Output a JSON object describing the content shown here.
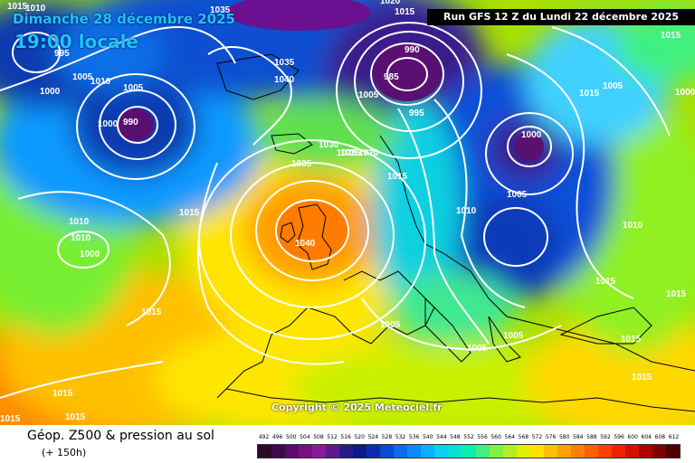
{
  "header": {
    "date_text": "Dimanche 28 décembre 2025",
    "time_text": "19:00 locale",
    "run_text": "Run GFS 12 Z du Lundi 22 décembre 2025"
  },
  "map": {
    "copyright": "Copyright © 2025 Meteociel.fr",
    "isobar_labels": [
      {
        "text": "1015"
      },
      {
        "text": "1010"
      },
      {
        "text": "995"
      },
      {
        "text": "1000"
      },
      {
        "text": "1005"
      },
      {
        "text": "1010"
      },
      {
        "text": "1005"
      },
      {
        "text": "1000"
      },
      {
        "text": "990"
      },
      {
        "text": "1035"
      },
      {
        "text": "1035"
      },
      {
        "text": "1040"
      },
      {
        "text": "1020"
      },
      {
        "text": "1015"
      },
      {
        "text": "990"
      },
      {
        "text": "985"
      },
      {
        "text": "1005"
      },
      {
        "text": "995"
      },
      {
        "text": "1025"
      },
      {
        "text": "1020"
      },
      {
        "text": "1015"
      },
      {
        "text": "1000"
      },
      {
        "text": "1005"
      },
      {
        "text": "1030"
      },
      {
        "text": "1025"
      },
      {
        "text": "1020"
      },
      {
        "text": "1035"
      },
      {
        "text": "1015"
      },
      {
        "text": "1015"
      },
      {
        "text": "1010"
      },
      {
        "text": "1005"
      },
      {
        "text": "1000"
      },
      {
        "text": "1040"
      },
      {
        "text": "1010"
      },
      {
        "text": "1000"
      },
      {
        "text": "1010"
      },
      {
        "text": "1015"
      },
      {
        "text": "1015"
      },
      {
        "text": "1010"
      },
      {
        "text": "1005"
      },
      {
        "text": "1005"
      },
      {
        "text": "1005"
      },
      {
        "text": "1015"
      },
      {
        "text": "1015"
      },
      {
        "text": "1015"
      },
      {
        "text": "1015"
      },
      {
        "text": "1015"
      },
      {
        "text": "1015"
      },
      {
        "text": "1015"
      }
    ]
  },
  "footer": {
    "title": "Géop. Z500 & pression au sol",
    "subtitle": "(+ 150h)"
  },
  "legend": {
    "values": [
      "492",
      "496",
      "500",
      "504",
      "508",
      "512",
      "516",
      "520",
      "524",
      "528",
      "532",
      "536",
      "540",
      "544",
      "548",
      "552",
      "556",
      "560",
      "564",
      "568",
      "572",
      "576",
      "580",
      "584",
      "588",
      "592",
      "596",
      "600",
      "604",
      "608",
      "612"
    ],
    "colors": [
      "#2a0a2a",
      "#3e0a4a",
      "#5a0a6a",
      "#7a1080",
      "#8a1a9a",
      "#5a1a8a",
      "#2a1a8a",
      "#0a1a8a",
      "#0a2ab0",
      "#0a4ad0",
      "#0a6af0",
      "#0a8aff",
      "#0ab0ff",
      "#0ad0f0",
      "#0ae0d0",
      "#0af0b0",
      "#40f080",
      "#80f040",
      "#b0f020",
      "#e0f000",
      "#ffe000",
      "#ffc000",
      "#ffa000",
      "#ff8000",
      "#ff6000",
      "#ff4000",
      "#f02000",
      "#d01000",
      "#b00000",
      "#800000",
      "#500000"
    ]
  }
}
